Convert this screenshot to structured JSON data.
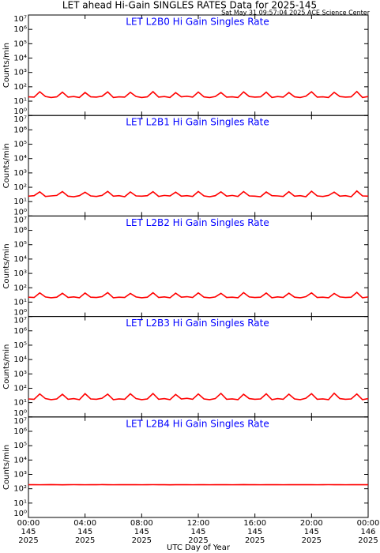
{
  "title": "LET ahead Hi-Gain SINGLES RATES Data for 2025-145",
  "timestamp": "Sat May 31 09:57:04 2025 ACE Science Center",
  "chart_data": [
    {
      "type": "line",
      "title": "LET L2B0 Hi Gain Singles Rate",
      "ylabel": "Counts/min",
      "log_y": true,
      "ylim": [
        1,
        10000000
      ],
      "yticks": [
        {
          "value": 1,
          "label": "10⁰"
        },
        {
          "value": 10,
          "label": "10¹"
        },
        {
          "value": 100,
          "label": "10²"
        },
        {
          "value": 1000,
          "label": "10³"
        },
        {
          "value": 10000,
          "label": "10⁴"
        },
        {
          "value": 100000,
          "label": "10⁵"
        },
        {
          "value": 1000000,
          "label": "10⁶"
        },
        {
          "value": 10000000,
          "label": "10⁷"
        }
      ],
      "xlim": [
        0,
        24
      ],
      "x": [
        0,
        0.4,
        0.8,
        1.2,
        1.6,
        2,
        2.4,
        2.8,
        3.2,
        3.6,
        4,
        4.4,
        4.8,
        5.2,
        5.6,
        6,
        6.4,
        6.8,
        7.2,
        7.6,
        8,
        8.4,
        8.8,
        9.2,
        9.6,
        10,
        10.4,
        10.8,
        11.2,
        11.6,
        12,
        12.4,
        12.8,
        13.2,
        13.6,
        14,
        14.4,
        14.8,
        15.2,
        15.6,
        16,
        16.4,
        16.8,
        17.2,
        17.6,
        18,
        18.4,
        18.8,
        19.2,
        19.6,
        20,
        20.4,
        20.8,
        21.2,
        21.6,
        22,
        22.4,
        22.8,
        23.2,
        23.6,
        24
      ],
      "series": [
        {
          "color": "#ff0000",
          "values": [
            20,
            19,
            45,
            21,
            18,
            20,
            42,
            19,
            21,
            18,
            40,
            20,
            19,
            22,
            44,
            18,
            20,
            19,
            41,
            21,
            18,
            20,
            46,
            19,
            21,
            18,
            39,
            20,
            22,
            19,
            43,
            20,
            18,
            21,
            40,
            19,
            20,
            18,
            44,
            21,
            19,
            20,
            42,
            18,
            21,
            19,
            40,
            20,
            18,
            22,
            45,
            19,
            20,
            18,
            41,
            21,
            19,
            20,
            47,
            18,
            21
          ]
        }
      ]
    },
    {
      "type": "line",
      "title": "LET L2B1 Hi Gain Singles Rate",
      "ylabel": "Counts/min",
      "log_y": true,
      "ylim": [
        1,
        10000000
      ],
      "yticks": [
        {
          "value": 1,
          "label": "10⁰"
        },
        {
          "value": 10,
          "label": "10¹"
        },
        {
          "value": 100,
          "label": "10²"
        },
        {
          "value": 1000,
          "label": "10³"
        },
        {
          "value": 10000,
          "label": "10⁴"
        },
        {
          "value": 100000,
          "label": "10⁵"
        },
        {
          "value": 1000000,
          "label": "10⁶"
        },
        {
          "value": 10000000,
          "label": "10⁷"
        }
      ],
      "xlim": [
        0,
        24
      ],
      "x": [
        0,
        0.4,
        0.8,
        1.2,
        1.6,
        2,
        2.4,
        2.8,
        3.2,
        3.6,
        4,
        4.4,
        4.8,
        5.2,
        5.6,
        6,
        6.4,
        6.8,
        7.2,
        7.6,
        8,
        8.4,
        8.8,
        9.2,
        9.6,
        10,
        10.4,
        10.8,
        11.2,
        11.6,
        12,
        12.4,
        12.8,
        13.2,
        13.6,
        14,
        14.4,
        14.8,
        15.2,
        15.6,
        16,
        16.4,
        16.8,
        17.2,
        17.6,
        18,
        18.4,
        18.8,
        19.2,
        19.6,
        20,
        20.4,
        20.8,
        21.2,
        21.6,
        22,
        22.4,
        22.8,
        23.2,
        23.6,
        24
      ],
      "series": [
        {
          "color": "#ff0000",
          "values": [
            24,
            26,
            48,
            23,
            25,
            27,
            50,
            24,
            22,
            26,
            45,
            25,
            23,
            27,
            52,
            24,
            26,
            22,
            47,
            25,
            24,
            26,
            49,
            23,
            27,
            25,
            46,
            24,
            26,
            23,
            51,
            25,
            22,
            26,
            48,
            24,
            27,
            23,
            50,
            25,
            24,
            22,
            47,
            26,
            25,
            23,
            49,
            24,
            26,
            22,
            53,
            25,
            23,
            27,
            46,
            24,
            26,
            22,
            55,
            25,
            24
          ]
        }
      ]
    },
    {
      "type": "line",
      "title": "LET L2B2 Hi Gain Singles Rate",
      "ylabel": "Counts/min",
      "log_y": true,
      "ylim": [
        1,
        10000000
      ],
      "yticks": [
        {
          "value": 1,
          "label": "10⁰"
        },
        {
          "value": 10,
          "label": "10¹"
        },
        {
          "value": 100,
          "label": "10²"
        },
        {
          "value": 1000,
          "label": "10³"
        },
        {
          "value": 10000,
          "label": "10⁴"
        },
        {
          "value": 100000,
          "label": "10⁵"
        },
        {
          "value": 1000000,
          "label": "10⁶"
        },
        {
          "value": 10000000,
          "label": "10⁷"
        }
      ],
      "xlim": [
        0,
        24
      ],
      "x": [
        0,
        0.4,
        0.8,
        1.2,
        1.6,
        2,
        2.4,
        2.8,
        3.2,
        3.6,
        4,
        4.4,
        4.8,
        5.2,
        5.6,
        6,
        6.4,
        6.8,
        7.2,
        7.6,
        8,
        8.4,
        8.8,
        9.2,
        9.6,
        10,
        10.4,
        10.8,
        11.2,
        11.6,
        12,
        12.4,
        12.8,
        13.2,
        13.6,
        14,
        14.4,
        14.8,
        15.2,
        15.6,
        16,
        16.4,
        16.8,
        17.2,
        17.6,
        18,
        18.4,
        18.8,
        19.2,
        19.6,
        20,
        20.4,
        20.8,
        21.2,
        21.6,
        22,
        22.4,
        22.8,
        23.2,
        23.6,
        24
      ],
      "series": [
        {
          "color": "#ff0000",
          "values": [
            22,
            21,
            44,
            23,
            20,
            22,
            41,
            21,
            23,
            20,
            43,
            22,
            21,
            24,
            46,
            20,
            22,
            21,
            40,
            23,
            20,
            22,
            45,
            21,
            23,
            20,
            42,
            22,
            24,
            21,
            44,
            22,
            20,
            23,
            41,
            21,
            22,
            20,
            46,
            23,
            21,
            22,
            43,
            20,
            23,
            21,
            42,
            22,
            20,
            24,
            44,
            21,
            22,
            20,
            40,
            23,
            21,
            22,
            48,
            20,
            23
          ]
        }
      ]
    },
    {
      "type": "line",
      "title": "LET L2B3 Hi Gain Singles Rate",
      "ylabel": "Counts/min",
      "log_y": true,
      "ylim": [
        1,
        10000000
      ],
      "yticks": [
        {
          "value": 1,
          "label": "10⁰"
        },
        {
          "value": 10,
          "label": "10¹"
        },
        {
          "value": 100,
          "label": "10²"
        },
        {
          "value": 1000,
          "label": "10³"
        },
        {
          "value": 10000,
          "label": "10⁴"
        },
        {
          "value": 100000,
          "label": "10⁵"
        },
        {
          "value": 1000000,
          "label": "10⁶"
        },
        {
          "value": 10000000,
          "label": "10⁷"
        }
      ],
      "xlim": [
        0,
        24
      ],
      "x": [
        0,
        0.4,
        0.8,
        1.2,
        1.6,
        2,
        2.4,
        2.8,
        3.2,
        3.6,
        4,
        4.4,
        4.8,
        5.2,
        5.6,
        6,
        6.4,
        6.8,
        7.2,
        7.6,
        8,
        8.4,
        8.8,
        9.2,
        9.6,
        10,
        10.4,
        10.8,
        11.2,
        11.6,
        12,
        12.4,
        12.8,
        13.2,
        13.6,
        14,
        14.4,
        14.8,
        15.2,
        15.6,
        16,
        16.4,
        16.8,
        17.2,
        17.6,
        18,
        18.4,
        18.8,
        19.2,
        19.6,
        20,
        20.4,
        20.8,
        21.2,
        21.6,
        22,
        22.4,
        22.8,
        23.2,
        23.6,
        24
      ],
      "series": [
        {
          "color": "#ff0000",
          "values": [
            18,
            17,
            40,
            19,
            16,
            18,
            38,
            17,
            19,
            16,
            42,
            18,
            17,
            20,
            39,
            16,
            18,
            17,
            41,
            19,
            16,
            18,
            43,
            17,
            19,
            16,
            37,
            18,
            20,
            17,
            40,
            18,
            16,
            19,
            44,
            17,
            18,
            16,
            38,
            19,
            17,
            18,
            41,
            16,
            19,
            17,
            39,
            18,
            16,
            20,
            42,
            17,
            18,
            16,
            45,
            19,
            17,
            18,
            40,
            16,
            19
          ]
        }
      ]
    },
    {
      "type": "line",
      "title": "LET L2B4 Hi Gain Singles Rate",
      "ylabel": "Counts/min",
      "log_y": true,
      "ylim": [
        1,
        10000000
      ],
      "yticks": [
        {
          "value": 1,
          "label": "10⁰"
        },
        {
          "value": 10,
          "label": "10¹"
        },
        {
          "value": 100,
          "label": "10²"
        },
        {
          "value": 1000,
          "label": "10³"
        },
        {
          "value": 10000,
          "label": "10⁴"
        },
        {
          "value": 100000,
          "label": "10⁵"
        },
        {
          "value": 1000000,
          "label": "10⁶"
        },
        {
          "value": 10000000,
          "label": "10⁷"
        }
      ],
      "xlim": [
        0,
        24
      ],
      "xlabel": "UTC Day of Year",
      "xticks": [
        {
          "value": 0,
          "label": "00:00"
        },
        {
          "value": 4,
          "label": "04:00"
        },
        {
          "value": 8,
          "label": "08:00"
        },
        {
          "value": 12,
          "label": "12:00"
        },
        {
          "value": 16,
          "label": "16:00"
        },
        {
          "value": 20,
          "label": "20:00"
        },
        {
          "value": 24,
          "label": "00:00"
        }
      ],
      "xtick_days": [
        "145",
        "145",
        "145",
        "145",
        "145",
        "145",
        "146"
      ],
      "xtick_years": [
        "2025",
        "2025",
        "2025",
        "2025",
        "2025",
        "2025",
        "2025"
      ],
      "x": [
        0,
        0.4,
        0.8,
        1.2,
        1.6,
        2,
        2.4,
        2.8,
        3.2,
        3.6,
        4,
        4.4,
        4.8,
        5.2,
        5.6,
        6,
        6.4,
        6.8,
        7.2,
        7.6,
        8,
        8.4,
        8.8,
        9.2,
        9.6,
        10,
        10.4,
        10.8,
        11.2,
        11.6,
        12,
        12.4,
        12.8,
        13.2,
        13.6,
        14,
        14.4,
        14.8,
        15.2,
        15.6,
        16,
        16.4,
        16.8,
        17.2,
        17.6,
        18,
        18.4,
        18.8,
        19.2,
        19.6,
        20,
        20.4,
        20.8,
        21.2,
        21.6,
        22,
        22.4,
        22.8,
        23.2,
        23.6,
        24
      ],
      "series": [
        {
          "color": "#ff0000",
          "values": [
            190,
            192,
            189,
            191,
            193,
            190,
            188,
            191,
            192,
            190,
            189,
            191,
            190,
            193,
            191,
            189,
            190,
            192,
            190,
            191,
            189,
            190,
            192,
            191,
            190,
            188,
            191,
            190,
            192,
            189,
            191,
            190,
            189,
            192,
            190,
            191,
            189,
            190,
            193,
            190,
            191,
            189,
            190,
            192,
            190,
            189,
            191,
            190,
            192,
            190,
            191,
            189,
            190,
            192,
            191,
            190,
            189,
            191,
            190,
            192,
            190
          ]
        }
      ]
    }
  ]
}
